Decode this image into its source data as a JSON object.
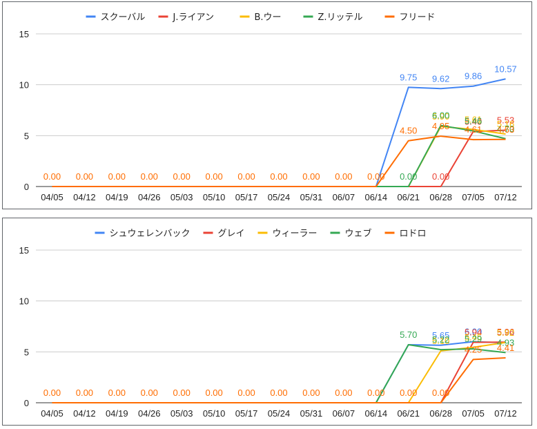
{
  "chart_data": [
    {
      "type": "line",
      "categories": [
        "04/05",
        "04/12",
        "04/19",
        "04/26",
        "05/03",
        "05/10",
        "05/17",
        "05/24",
        "05/31",
        "06/07",
        "06/14",
        "06/21",
        "06/28",
        "07/05",
        "07/12"
      ],
      "ylim": [
        0,
        15
      ],
      "yticks": [
        0,
        5,
        10,
        15
      ],
      "grid": true,
      "legend_position": "top",
      "series": [
        {
          "name": "スクーバル",
          "color": "#4285f4",
          "values": [
            0,
            0,
            0,
            0,
            0,
            0,
            0,
            0,
            0,
            0,
            0,
            9.75,
            9.62,
            9.86,
            10.57
          ],
          "labels": [
            null,
            null,
            null,
            null,
            null,
            null,
            null,
            null,
            null,
            null,
            null,
            "9.75",
            "9.62",
            "9.86",
            "10.57"
          ]
        },
        {
          "name": "J.ライアン",
          "color": "#ea4335",
          "values": [
            0,
            0,
            0,
            0,
            0,
            0,
            0,
            0,
            0,
            0,
            0,
            0,
            0,
            5.4,
            5.53
          ],
          "labels": [
            null,
            null,
            null,
            null,
            null,
            null,
            null,
            null,
            null,
            null,
            null,
            null,
            "0.00",
            "5.40",
            "5.53"
          ]
        },
        {
          "name": "B.ウー",
          "color": "#fbbc04",
          "values": [
            0,
            0,
            0,
            0,
            0,
            0,
            0,
            0,
            0,
            0,
            0,
            0,
            5.9,
            5.61,
            5.16
          ],
          "labels": [
            null,
            null,
            null,
            null,
            null,
            null,
            null,
            null,
            null,
            null,
            null,
            null,
            "5.90",
            "5.61",
            "5.16"
          ]
        },
        {
          "name": "Z.リッテル",
          "color": "#34a853",
          "values": [
            0,
            0,
            0,
            0,
            0,
            0,
            0,
            0,
            0,
            0,
            0,
            0,
            6.0,
            5.46,
            4.7
          ],
          "labels": [
            null,
            null,
            null,
            null,
            null,
            null,
            null,
            null,
            null,
            null,
            null,
            "0.00",
            "6.00",
            "5.46",
            "4.70"
          ]
        },
        {
          "name": "フリード",
          "color": "#ff6d01",
          "values": [
            0,
            0,
            0,
            0,
            0,
            0,
            0,
            0,
            0,
            0,
            0,
            4.5,
            4.95,
            4.61,
            4.63
          ],
          "labels": [
            "0.00",
            "0.00",
            "0.00",
            "0.00",
            "0.00",
            "0.00",
            "0.00",
            "0.00",
            "0.00",
            "0.00",
            "0.00",
            "4.50",
            "4.95",
            "4.61",
            "4.63"
          ]
        }
      ]
    },
    {
      "type": "line",
      "categories": [
        "04/05",
        "04/12",
        "04/19",
        "04/26",
        "05/03",
        "05/10",
        "05/17",
        "05/24",
        "05/31",
        "06/07",
        "06/14",
        "06/21",
        "06/28",
        "07/05",
        "07/12"
      ],
      "ylim": [
        0,
        15
      ],
      "yticks": [
        0,
        5,
        10,
        15
      ],
      "grid": true,
      "legend_position": "top",
      "series": [
        {
          "name": "シュウェレンバック",
          "color": "#4285f4",
          "values": [
            0,
            0,
            0,
            0,
            0,
            0,
            0,
            0,
            0,
            0,
            0,
            5.7,
            5.65,
            6.0,
            5.9
          ],
          "labels": [
            null,
            null,
            null,
            null,
            null,
            null,
            null,
            null,
            null,
            null,
            null,
            null,
            "5.65",
            "6.00",
            "5.90"
          ]
        },
        {
          "name": "グレイ",
          "color": "#ea4335",
          "values": [
            0,
            0,
            0,
            0,
            0,
            0,
            0,
            0,
            0,
            0,
            0,
            0,
            0,
            5.94,
            5.96
          ],
          "labels": [
            null,
            null,
            null,
            null,
            null,
            null,
            null,
            null,
            null,
            null,
            null,
            null,
            null,
            "5.94",
            "5.96"
          ]
        },
        {
          "name": "ウィーラー",
          "color": "#fbbc04",
          "values": [
            0,
            0,
            0,
            0,
            0,
            0,
            0,
            0,
            0,
            0,
            0,
            0,
            5.1,
            5.45,
            5.92
          ],
          "labels": [
            null,
            null,
            null,
            null,
            null,
            null,
            null,
            null,
            null,
            null,
            null,
            null,
            "5.10",
            "5.45",
            "5.92"
          ]
        },
        {
          "name": "ウェブ",
          "color": "#34a853",
          "values": [
            0,
            0,
            0,
            0,
            0,
            0,
            0,
            0,
            0,
            0,
            0,
            5.7,
            5.22,
            5.29,
            4.93
          ],
          "labels": [
            null,
            null,
            null,
            null,
            null,
            null,
            null,
            null,
            null,
            null,
            null,
            "5.70",
            "5.22",
            "5.29",
            "4.93"
          ]
        },
        {
          "name": "ロドロ",
          "color": "#ff6d01",
          "values": [
            0,
            0,
            0,
            0,
            0,
            0,
            0,
            0,
            0,
            0,
            0,
            0,
            0,
            4.25,
            4.41
          ],
          "labels": [
            "0.00",
            "0.00",
            "0.00",
            "0.00",
            "0.00",
            "0.00",
            "0.00",
            "0.00",
            "0.00",
            "0.00",
            "0.00",
            "0.00",
            "0.00",
            "4.25",
            "4.41"
          ]
        }
      ]
    }
  ]
}
